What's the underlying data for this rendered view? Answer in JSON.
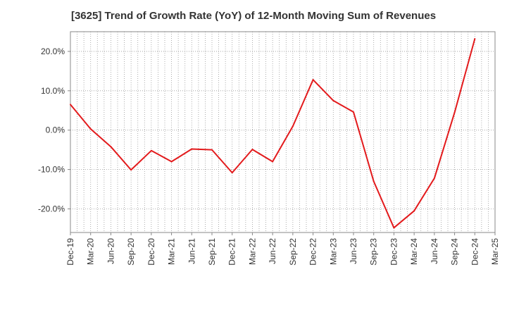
{
  "chart_data": {
    "type": "line",
    "title": "[3625]  Trend of Growth Rate (YoY) of 12-Month Moving Sum of Revenues",
    "xlabel": "",
    "ylabel": "",
    "categories": [
      "Dec-19",
      "Mar-20",
      "Jun-20",
      "Sep-20",
      "Dec-20",
      "Mar-21",
      "Jun-21",
      "Sep-21",
      "Dec-21",
      "Mar-22",
      "Jun-22",
      "Sep-22",
      "Dec-22",
      "Mar-23",
      "Jun-23",
      "Sep-23",
      "Dec-23",
      "Mar-24",
      "Jun-24",
      "Sep-24",
      "Dec-24",
      "Mar-25"
    ],
    "ylim": [
      -26,
      25
    ],
    "yticks": [
      -20,
      -10,
      0,
      10,
      20
    ],
    "ytick_labels": [
      "-20.0%",
      "-10.0%",
      "0.0%",
      "10.0%",
      "20.0%"
    ],
    "grid": true,
    "series": [
      {
        "color": "#e31a1c",
        "values": [
          6.5,
          0.3,
          -4.2,
          -10.1,
          -5.2,
          -8.0,
          -4.8,
          -5.0,
          -10.8,
          -4.9,
          -8.0,
          1.0,
          12.8,
          7.5,
          4.6,
          -13.0,
          -24.8,
          -20.5,
          -12.2,
          4.5,
          23.2,
          null
        ]
      }
    ]
  }
}
